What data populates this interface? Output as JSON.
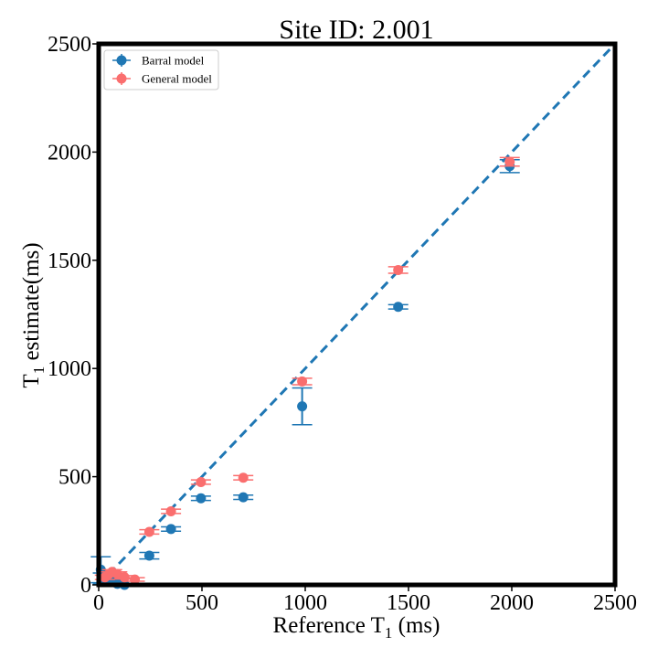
{
  "chart_data": {
    "type": "scatter",
    "title": "Site ID: 2.001",
    "xlabel": {
      "main": "Reference T",
      "sub": "1",
      "unit": " (ms)"
    },
    "ylabel": {
      "main": "T",
      "sub": "1",
      "unit": " estimate(ms)"
    },
    "xlim": [
      0,
      2500
    ],
    "ylim": [
      0,
      2500
    ],
    "xticks": [
      "0",
      "500",
      "1000",
      "1500",
      "2000",
      "2500"
    ],
    "yticks": [
      "0",
      "500",
      "1000",
      "1500",
      "2000",
      "2500"
    ],
    "grid": false,
    "legend_position": "top-left",
    "identity_line": {
      "style": "dashed",
      "color": "#1f77b4",
      "from": [
        0,
        0
      ],
      "to": [
        2500,
        2500
      ]
    },
    "series": [
      {
        "name": "Barral model",
        "color": "#1f77b4",
        "points": [
          {
            "x": 1990,
            "y": 1935,
            "err": 30
          },
          {
            "x": 1450,
            "y": 1285,
            "err": 10
          },
          {
            "x": 985,
            "y": 825,
            "err": 85
          },
          {
            "x": 700,
            "y": 405,
            "err": 10
          },
          {
            "x": 495,
            "y": 400,
            "err": 10
          },
          {
            "x": 350,
            "y": 258,
            "err": 10
          },
          {
            "x": 245,
            "y": 135,
            "err": 15
          },
          {
            "x": 10,
            "y": 70,
            "err": 60
          },
          {
            "x": 20,
            "y": 30,
            "err": 25
          },
          {
            "x": 45,
            "y": 20,
            "err": 15
          },
          {
            "x": 70,
            "y": 15,
            "err": 10
          },
          {
            "x": 90,
            "y": 5,
            "err": 8
          },
          {
            "x": 125,
            "y": 0,
            "err": 5
          }
        ]
      },
      {
        "name": "General model",
        "color": "#fa6e6e",
        "points": [
          {
            "x": 1990,
            "y": 1955,
            "err": 20
          },
          {
            "x": 1450,
            "y": 1455,
            "err": 15
          },
          {
            "x": 985,
            "y": 940,
            "err": 15
          },
          {
            "x": 700,
            "y": 495,
            "err": 10
          },
          {
            "x": 495,
            "y": 475,
            "err": 10
          },
          {
            "x": 350,
            "y": 340,
            "err": 10
          },
          {
            "x": 245,
            "y": 245,
            "err": 10
          },
          {
            "x": 30,
            "y": 35,
            "err": 10
          },
          {
            "x": 50,
            "y": 50,
            "err": 10
          },
          {
            "x": 65,
            "y": 60,
            "err": 10
          },
          {
            "x": 90,
            "y": 50,
            "err": 10
          },
          {
            "x": 125,
            "y": 35,
            "err": 8
          },
          {
            "x": 175,
            "y": 25,
            "err": 8
          }
        ]
      }
    ]
  }
}
